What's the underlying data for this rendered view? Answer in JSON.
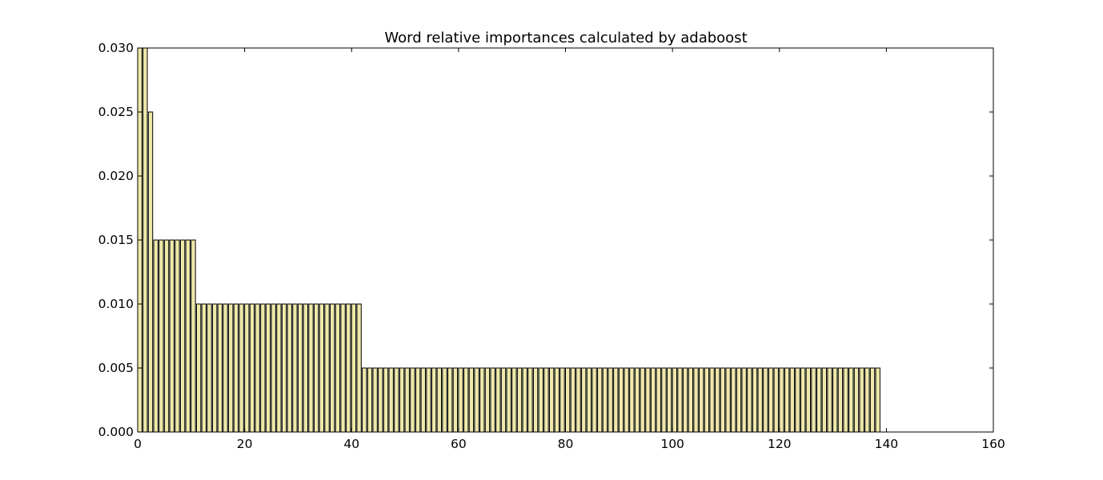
{
  "chart_data": {
    "type": "bar",
    "title": "Word relative importances calculated by adaboost",
    "xlabel": "",
    "ylabel": "",
    "xlim": [
      0,
      160
    ],
    "ylim": [
      0,
      0.03
    ],
    "x_ticks": [
      "0",
      "20",
      "40",
      "60",
      "80",
      "100",
      "120",
      "140",
      "160"
    ],
    "y_ticks": [
      "0.000",
      "0.005",
      "0.010",
      "0.015",
      "0.020",
      "0.025",
      "0.030"
    ],
    "grid": false,
    "bar_color": "#eee8aa",
    "edge_color": "#000000",
    "segments": [
      {
        "start": 0,
        "count": 2,
        "value": 0.03
      },
      {
        "start": 2,
        "count": 1,
        "value": 0.025
      },
      {
        "start": 3,
        "count": 8,
        "value": 0.015
      },
      {
        "start": 11,
        "count": 31,
        "value": 0.01
      },
      {
        "start": 42,
        "count": 97,
        "value": 0.005
      },
      {
        "start": 139,
        "count": 11,
        "value": 0.0
      }
    ]
  }
}
